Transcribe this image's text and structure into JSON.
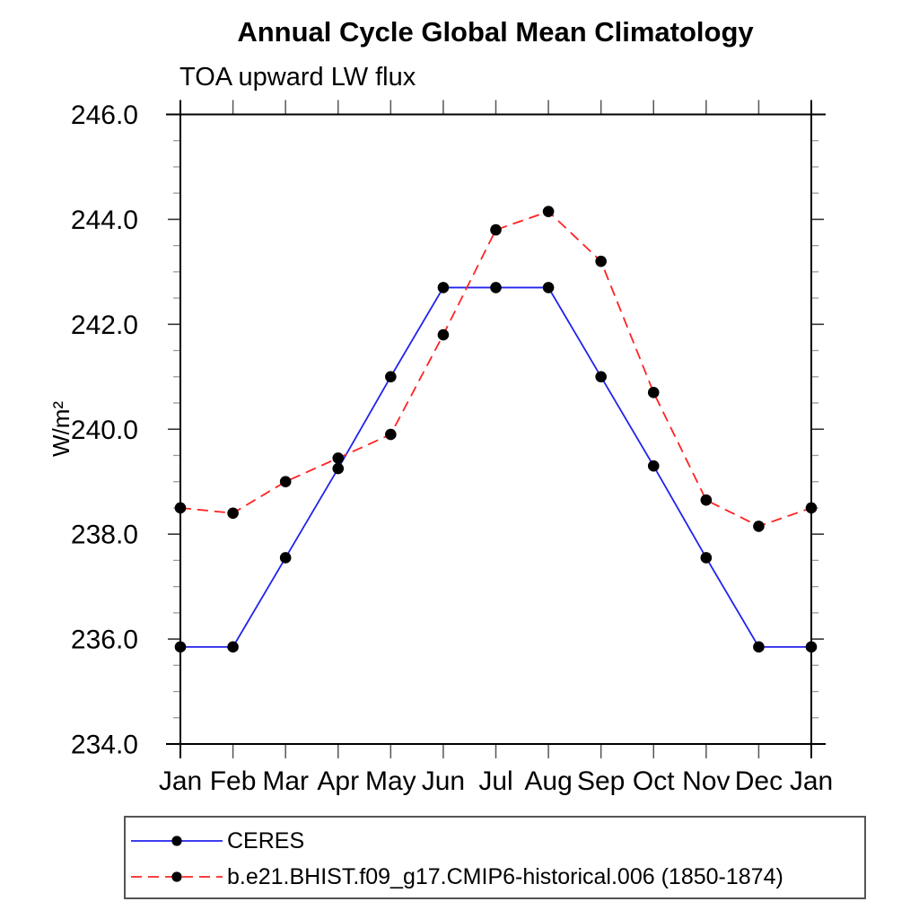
{
  "chart_data": {
    "type": "line",
    "title": "Annual Cycle Global Mean Climatology",
    "subtitle": "TOA upward LW flux",
    "ylabel": "W/m²",
    "xlabel": "",
    "categories": [
      "Jan",
      "Feb",
      "Mar",
      "Apr",
      "May",
      "Jun",
      "Jul",
      "Aug",
      "Sep",
      "Oct",
      "Nov",
      "Dec",
      "Jan"
    ],
    "series": [
      {
        "name": "CERES",
        "color": "#2222ee",
        "line_style": "solid",
        "marker": "filled-circle",
        "marker_color": "#000000",
        "values": [
          235.85,
          235.85,
          237.55,
          239.25,
          241.0,
          242.7,
          242.7,
          242.7,
          241.0,
          239.3,
          237.55,
          235.85,
          235.85
        ]
      },
      {
        "name": "b.e21.BHIST.f09_g17.CMIP6-historical.006 (1850-1874)",
        "color": "#ff2222",
        "line_style": "dashed",
        "marker": "filled-circle",
        "marker_color": "#000000",
        "values": [
          238.5,
          238.4,
          239.0,
          239.45,
          239.9,
          241.8,
          243.8,
          244.15,
          243.2,
          240.7,
          238.65,
          238.15,
          238.5
        ]
      }
    ],
    "ylim": [
      234.0,
      246.0
    ],
    "ytick_interval": 2.0,
    "ytick_minor_interval": 0.5,
    "ytick_labels": [
      "234.0",
      "236.0",
      "238.0",
      "240.0",
      "242.0",
      "244.0",
      "246.0"
    ],
    "grid": false,
    "legend_position": "bottom",
    "background_color": "#ffffff",
    "axis_color": "#000000"
  }
}
